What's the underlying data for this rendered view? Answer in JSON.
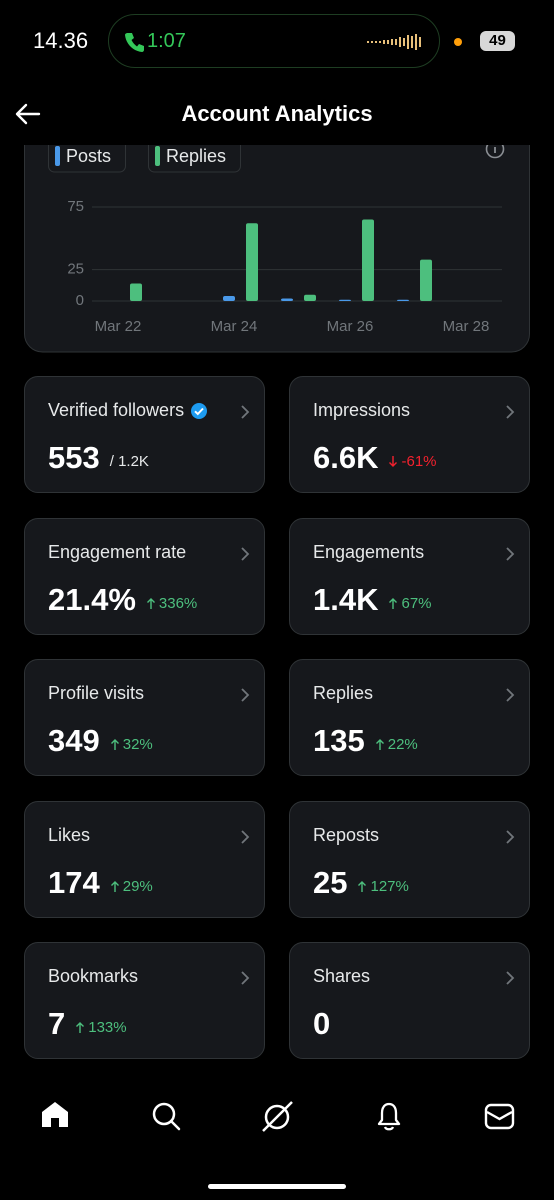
{
  "status_bar": {
    "time": "14.36",
    "call_time": "1:07",
    "battery": "49"
  },
  "header": {
    "title": "Account Analytics"
  },
  "chart_data": {
    "type": "bar",
    "categories": [
      "Mar 22",
      null,
      "Mar 24",
      null,
      "Mar 26",
      null,
      "Mar 28"
    ],
    "series": [
      {
        "name": "Posts",
        "color": "#4a99e9",
        "values": [
          0,
          0,
          4,
          2,
          1,
          1,
          0
        ]
      },
      {
        "name": "Replies",
        "color": "#4dbf7e",
        "values": [
          14,
          0,
          62,
          5,
          65,
          33,
          0
        ]
      }
    ],
    "ylim": [
      0,
      80
    ],
    "yticks": [
      0,
      25,
      75
    ],
    "grid": true
  },
  "cards": [
    {
      "label": "Verified followers",
      "value": "553",
      "total": "/ 1.2K",
      "verified": true
    },
    {
      "label": "Impressions",
      "value": "6.6K",
      "change": "-61%",
      "trend": "down"
    },
    {
      "label": "Engagement rate",
      "value": "21.4%",
      "change": "336%",
      "trend": "up"
    },
    {
      "label": "Engagements",
      "value": "1.4K",
      "change": "67%",
      "trend": "up"
    },
    {
      "label": "Profile visits",
      "value": "349",
      "change": "32%",
      "trend": "up"
    },
    {
      "label": "Replies",
      "value": "135",
      "change": "22%",
      "trend": "up"
    },
    {
      "label": "Likes",
      "value": "174",
      "change": "29%",
      "trend": "up"
    },
    {
      "label": "Reposts",
      "value": "25",
      "change": "127%",
      "trend": "up"
    },
    {
      "label": "Bookmarks",
      "value": "7",
      "change": "133%",
      "trend": "up"
    },
    {
      "label": "Shares",
      "value": "0"
    }
  ]
}
